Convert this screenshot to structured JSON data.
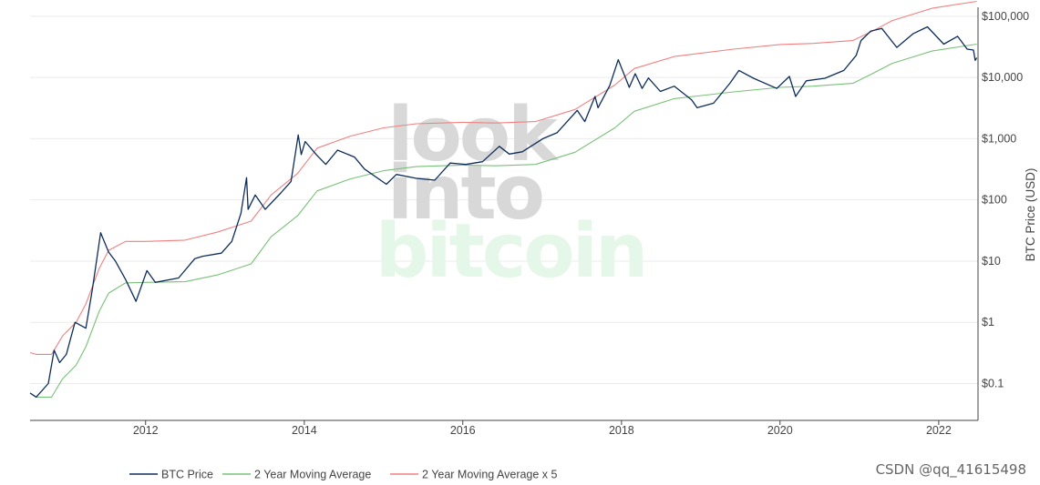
{
  "chart_data": {
    "type": "line",
    "yscale": "log",
    "ylabel": "BTC Price (USD)",
    "xlabel": "",
    "xlim": [
      "2010-07-18",
      "2022-07-01"
    ],
    "ylim": [
      0.025,
      140000
    ],
    "x_ticks": [
      "2012",
      "2014",
      "2016",
      "2018",
      "2020",
      "2022"
    ],
    "y_ticks": [
      {
        "value": 0.1,
        "label": "$0.1"
      },
      {
        "value": 1,
        "label": "$1"
      },
      {
        "value": 10,
        "label": "$10"
      },
      {
        "value": 100,
        "label": "$100"
      },
      {
        "value": 1000,
        "label": "$1,000"
      },
      {
        "value": 10000,
        "label": "$10,000"
      },
      {
        "value": 100000,
        "label": "$100,000"
      }
    ],
    "grid": true,
    "legend_position": "bottom-left",
    "series": [
      {
        "name": "BTC Price",
        "color": "#0c2d5c",
        "points": [
          [
            "2010-07-18",
            0.07
          ],
          [
            "2010-08-15",
            0.06
          ],
          [
            "2010-10-10",
            0.1
          ],
          [
            "2010-11-06",
            0.35
          ],
          [
            "2010-12-01",
            0.22
          ],
          [
            "2011-01-01",
            0.3
          ],
          [
            "2011-02-10",
            1.0
          ],
          [
            "2011-04-01",
            0.8
          ],
          [
            "2011-05-01",
            3.5
          ],
          [
            "2011-06-08",
            29
          ],
          [
            "2011-07-15",
            14
          ],
          [
            "2011-08-15",
            10
          ],
          [
            "2011-10-01",
            5
          ],
          [
            "2011-11-18",
            2.2
          ],
          [
            "2012-01-07",
            7
          ],
          [
            "2012-02-15",
            4.5
          ],
          [
            "2012-06-01",
            5.3
          ],
          [
            "2012-08-15",
            11
          ],
          [
            "2012-09-20",
            12
          ],
          [
            "2012-12-15",
            13.5
          ],
          [
            "2013-02-01",
            21
          ],
          [
            "2013-03-15",
            60
          ],
          [
            "2013-04-10",
            230
          ],
          [
            "2013-04-17",
            70
          ],
          [
            "2013-05-20",
            120
          ],
          [
            "2013-07-05",
            70
          ],
          [
            "2013-09-15",
            130
          ],
          [
            "2013-11-01",
            200
          ],
          [
            "2013-12-04",
            1150
          ],
          [
            "2013-12-18",
            550
          ],
          [
            "2014-01-05",
            900
          ],
          [
            "2014-02-25",
            550
          ],
          [
            "2014-04-10",
            380
          ],
          [
            "2014-06-03",
            650
          ],
          [
            "2014-08-20",
            500
          ],
          [
            "2014-10-05",
            320
          ],
          [
            "2015-01-14",
            180
          ],
          [
            "2015-03-01",
            260
          ],
          [
            "2015-06-01",
            225
          ],
          [
            "2015-08-25",
            210
          ],
          [
            "2015-11-04",
            400
          ],
          [
            "2016-01-15",
            380
          ],
          [
            "2016-04-01",
            420
          ],
          [
            "2016-06-17",
            750
          ],
          [
            "2016-08-02",
            560
          ],
          [
            "2016-10-01",
            610
          ],
          [
            "2017-01-04",
            1000
          ],
          [
            "2017-03-10",
            1250
          ],
          [
            "2017-06-11",
            2900
          ],
          [
            "2017-07-16",
            1900
          ],
          [
            "2017-09-01",
            4900
          ],
          [
            "2017-09-15",
            3200
          ],
          [
            "2017-11-08",
            7400
          ],
          [
            "2017-12-17",
            19500
          ],
          [
            "2018-02-06",
            6900
          ],
          [
            "2018-03-05",
            11500
          ],
          [
            "2018-04-06",
            6600
          ],
          [
            "2018-05-05",
            9800
          ],
          [
            "2018-06-29",
            5900
          ],
          [
            "2018-09-01",
            7200
          ],
          [
            "2018-11-20",
            4300
          ],
          [
            "2018-12-15",
            3200
          ],
          [
            "2019-03-01",
            3800
          ],
          [
            "2019-05-15",
            8000
          ],
          [
            "2019-06-26",
            13000
          ],
          [
            "2019-09-01",
            9700
          ],
          [
            "2019-12-17",
            6600
          ],
          [
            "2020-02-13",
            10400
          ],
          [
            "2020-03-13",
            4900
          ],
          [
            "2020-05-01",
            8800
          ],
          [
            "2020-07-26",
            9700
          ],
          [
            "2020-10-21",
            13000
          ],
          [
            "2020-12-17",
            23000
          ],
          [
            "2021-01-08",
            40000
          ],
          [
            "2021-02-21",
            57000
          ],
          [
            "2021-04-14",
            63000
          ],
          [
            "2021-06-22",
            31000
          ],
          [
            "2021-09-06",
            52000
          ],
          [
            "2021-11-10",
            67000
          ],
          [
            "2022-01-24",
            35000
          ],
          [
            "2022-03-29",
            47000
          ],
          [
            "2022-05-12",
            29000
          ],
          [
            "2022-06-10",
            28000
          ],
          [
            "2022-06-18",
            19000
          ],
          [
            "2022-06-25",
            21000
          ]
        ]
      },
      {
        "name": "2 Year Moving Average",
        "color": "#78c178",
        "points": [
          [
            "2010-08-15",
            0.06
          ],
          [
            "2010-10-25",
            0.06
          ],
          [
            "2010-12-15",
            0.12
          ],
          [
            "2011-02-15",
            0.2
          ],
          [
            "2011-04-01",
            0.4
          ],
          [
            "2011-06-01",
            1.5
          ],
          [
            "2011-07-15",
            3
          ],
          [
            "2011-10-01",
            4.4
          ],
          [
            "2012-01-01",
            4.5
          ],
          [
            "2012-07-01",
            4.6
          ],
          [
            "2012-12-01",
            6
          ],
          [
            "2013-05-01",
            9
          ],
          [
            "2013-08-01",
            25
          ],
          [
            "2013-12-01",
            55
          ],
          [
            "2014-03-01",
            140
          ],
          [
            "2014-08-01",
            220
          ],
          [
            "2015-01-01",
            300
          ],
          [
            "2015-06-01",
            350
          ],
          [
            "2016-01-01",
            370
          ],
          [
            "2016-06-01",
            360
          ],
          [
            "2016-12-01",
            380
          ],
          [
            "2017-06-01",
            600
          ],
          [
            "2017-12-01",
            1500
          ],
          [
            "2018-03-01",
            2800
          ],
          [
            "2018-09-01",
            4500
          ],
          [
            "2019-06-01",
            5800
          ],
          [
            "2020-01-01",
            6900
          ],
          [
            "2020-06-01",
            7200
          ],
          [
            "2020-12-01",
            8000
          ],
          [
            "2021-03-01",
            11500
          ],
          [
            "2021-06-01",
            17000
          ],
          [
            "2021-12-01",
            27000
          ],
          [
            "2022-06-25",
            35000
          ]
        ]
      },
      {
        "name": "2 Year Moving Average x 5",
        "color": "#f08080",
        "points": [
          [
            "2010-07-18",
            0.32
          ],
          [
            "2010-08-15",
            0.3
          ],
          [
            "2010-10-25",
            0.3
          ],
          [
            "2010-12-15",
            0.6
          ],
          [
            "2011-02-15",
            1.0
          ],
          [
            "2011-04-01",
            2.0
          ],
          [
            "2011-06-01",
            7.5
          ],
          [
            "2011-07-15",
            15
          ],
          [
            "2011-10-01",
            21
          ],
          [
            "2012-01-01",
            21
          ],
          [
            "2012-07-01",
            22
          ],
          [
            "2012-12-01",
            30
          ],
          [
            "2013-05-01",
            45
          ],
          [
            "2013-08-01",
            120
          ],
          [
            "2013-12-01",
            270
          ],
          [
            "2014-03-01",
            700
          ],
          [
            "2014-08-01",
            1100
          ],
          [
            "2015-01-01",
            1500
          ],
          [
            "2015-06-01",
            1750
          ],
          [
            "2016-01-01",
            1850
          ],
          [
            "2016-06-01",
            1800
          ],
          [
            "2016-12-01",
            1900
          ],
          [
            "2017-06-01",
            3000
          ],
          [
            "2017-12-01",
            7500
          ],
          [
            "2018-03-01",
            14000
          ],
          [
            "2018-09-01",
            22000
          ],
          [
            "2019-06-01",
            29000
          ],
          [
            "2020-01-01",
            34500
          ],
          [
            "2020-06-01",
            36000
          ],
          [
            "2020-12-01",
            40000
          ],
          [
            "2021-03-01",
            57000
          ],
          [
            "2021-06-01",
            85000
          ],
          [
            "2021-12-01",
            135000
          ],
          [
            "2022-06-25",
            175000
          ]
        ]
      }
    ]
  },
  "watermark": {
    "line1": "look",
    "line2": "into",
    "line3": "bitcoin",
    "color_grey": "#d8d8d8",
    "color_green": "#e5f7e8"
  },
  "credit": "CSDN @qq_41615498"
}
